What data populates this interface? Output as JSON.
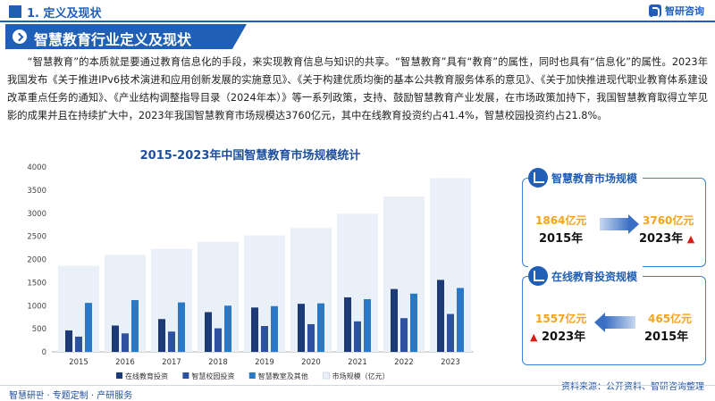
{
  "header": {
    "section": "1. 定义及现状",
    "logo_text": "智研咨询",
    "banner_title": "智慧教育行业定义及现状"
  },
  "intro": "“智慧教育”的本质就是要通过教育信息化的手段，来实现教育信息与知识的共享。“智慧教育”具有“教育”的属性，同时也具有“信息化”的属性。2023年我国发布《关于推进IPv6技术演进和应用创新发展的实施意见》、《关于构建优质均衡的基本公共教育服务体系的意见》、《关于加快推进现代职业教育体系建设改革重点任务的通知》、《产业结构调整指导目录（2024年本）》等一系列政策，支持、鼓励智慧教育产业发展，在市场政策加持下，我国智慧教育取得立竿见影的成果并且在持续扩大中，2023年我国智慧教育市场规模达3760亿元，其中在线教育投资约占41.4%，智慧校园投资约占21.8%。",
  "chart_data": {
    "type": "bar",
    "title": "2015-2023年中国智慧教育市场规模统计",
    "categories": [
      "2015",
      "2016",
      "2017",
      "2018",
      "2019",
      "2020",
      "2021",
      "2022",
      "2023"
    ],
    "ylim": [
      0,
      4000
    ],
    "yticks": [
      0,
      500,
      1000,
      1500,
      2000,
      2500,
      3000,
      3500,
      4000
    ],
    "grid": false,
    "legend_position": "bottom",
    "series": [
      {
        "name": "在线教育投资",
        "values": [
          465,
          570,
          710,
          860,
          960,
          1040,
          1180,
          1360,
          1557
        ],
        "color": "#1c3a78"
      },
      {
        "name": "智慧校园投资",
        "values": [
          330,
          400,
          440,
          510,
          560,
          600,
          660,
          730,
          820
        ],
        "color": "#2f4fa0"
      },
      {
        "name": "智慧教室及其他",
        "values": [
          1060,
          1120,
          1070,
          1000,
          990,
          1050,
          1140,
          1260,
          1383
        ],
        "color": "#2a78c8"
      },
      {
        "name": "市场规模（亿元）",
        "values": [
          1864,
          2100,
          2230,
          2380,
          2520,
          2680,
          2990,
          3360,
          3760
        ],
        "color": "#eaf0f8"
      }
    ]
  },
  "cards": [
    {
      "title": "智慧教育市场规模",
      "left_value": "1864亿元",
      "left_year": "2015年",
      "right_value": "3760亿元",
      "right_year": "2023年",
      "up_arrow": "▲"
    },
    {
      "title": "在线教育投资规模",
      "left_value": "1557亿元",
      "left_year": "2023年",
      "right_value": "465亿元",
      "right_year": "2015年",
      "up_arrow": "▲"
    }
  ],
  "footer": {
    "left": "智慧研판 · 专题定制 · 产研服务",
    "source": "资料来源：公开资料、智研咨询整理"
  },
  "colors": {
    "brand": "#1f5fb8",
    "highlight": "#f5a31a",
    "up": "#d91e18"
  }
}
